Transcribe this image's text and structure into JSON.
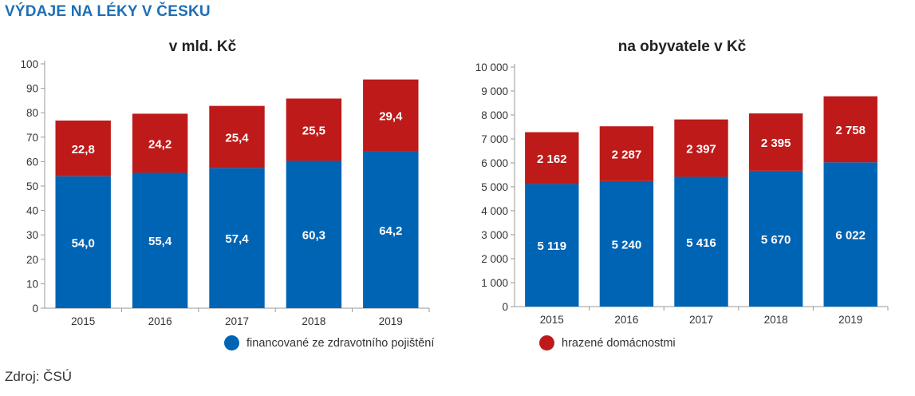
{
  "title": "VÝDAJE NA LÉKY V ČESKU",
  "source": "Zdroj: ČSÚ",
  "colors": {
    "blue": "#0064b4",
    "red": "#be1a1a",
    "title": "#1f6fb5"
  },
  "legend": [
    {
      "label": "financované ze zdravotního pojištění",
      "color": "#0064b4"
    },
    {
      "label": "hrazené domácnostmi",
      "color": "#be1a1a"
    }
  ],
  "chart_data": [
    {
      "type": "bar",
      "stacked": true,
      "title": "v mld. Kč",
      "categories": [
        "2015",
        "2016",
        "2017",
        "2018",
        "2019"
      ],
      "series": [
        {
          "name": "financované ze zdravotního pojištění",
          "values": [
            54.0,
            55.4,
            57.4,
            60.3,
            64.2
          ],
          "labels": [
            "54,0",
            "55,4",
            "57,4",
            "60,3",
            "64,2"
          ],
          "color": "#0064b4"
        },
        {
          "name": "hrazené domácnostmi",
          "values": [
            22.8,
            24.2,
            25.4,
            25.5,
            29.4
          ],
          "labels": [
            "22,8",
            "24,2",
            "25,4",
            "25,5",
            "29,4"
          ],
          "color": "#be1a1a"
        }
      ],
      "ylim": [
        0,
        100
      ],
      "yticks": [
        0,
        10,
        20,
        30,
        40,
        50,
        60,
        70,
        80,
        90,
        100
      ],
      "ytick_labels": [
        "0",
        "10",
        "20",
        "30",
        "40",
        "50",
        "60",
        "70",
        "80",
        "90",
        "100"
      ],
      "grid": false
    },
    {
      "type": "bar",
      "stacked": true,
      "title": "na obyvatele v Kč",
      "categories": [
        "2015",
        "2016",
        "2017",
        "2018",
        "2019"
      ],
      "series": [
        {
          "name": "financované ze zdravotního pojištění",
          "values": [
            5119,
            5240,
            5416,
            5670,
            6022
          ],
          "labels": [
            "5 119",
            "5 240",
            "5 416",
            "5 670",
            "6 022"
          ],
          "color": "#0064b4"
        },
        {
          "name": "hrazené domácnostmi",
          "values": [
            2162,
            2287,
            2397,
            2395,
            2758
          ],
          "labels": [
            "2 162",
            "2 287",
            "2 397",
            "2 395",
            "2 758"
          ],
          "color": "#be1a1a"
        }
      ],
      "ylim": [
        0,
        10000
      ],
      "yticks": [
        0,
        1000,
        2000,
        3000,
        4000,
        5000,
        6000,
        7000,
        8000,
        9000,
        10000
      ],
      "ytick_labels": [
        "0",
        "1 000",
        "2 000",
        "3 000",
        "4 000",
        "5 000",
        "6 000",
        "7 000",
        "8 000",
        "9 000",
        "10 000"
      ],
      "grid": false
    }
  ]
}
